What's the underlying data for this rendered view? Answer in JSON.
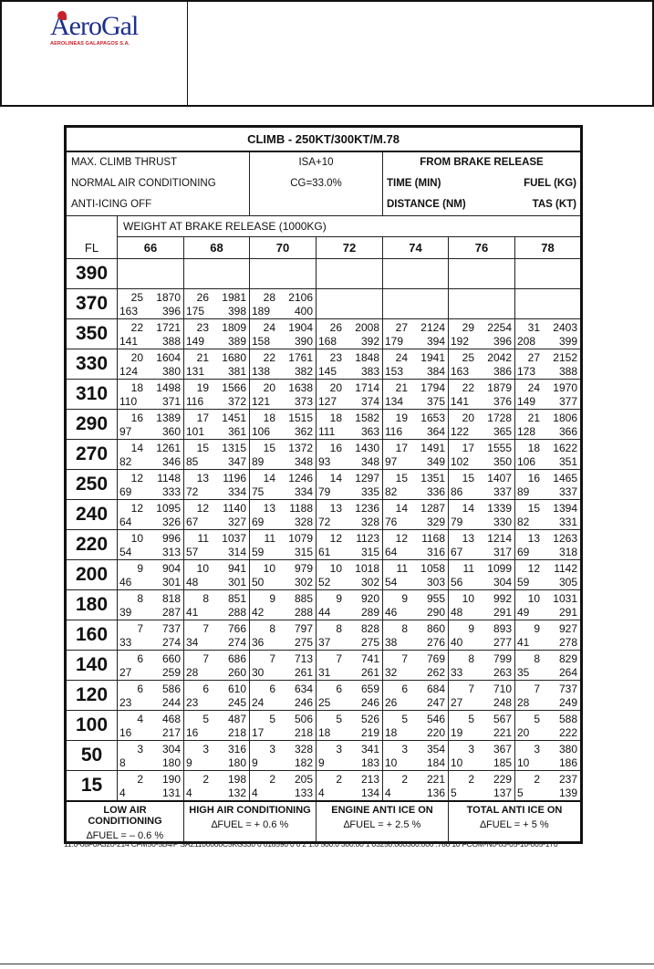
{
  "logo": {
    "name": "AeroGal",
    "subtitle": "AEROLINEAS GALAPAGOS S.A.",
    "colors": {
      "name": "#1d2f8f",
      "subtitle": "#c8202a"
    }
  },
  "table": {
    "title": "CLIMB - 250KT/300KT/M.78",
    "conditions": [
      "MAX. CLIMB THRUST",
      "NORMAL AIR CONDITIONING",
      "ANTI-ICING OFF"
    ],
    "isa": "ISA+10",
    "cg": "CG=33.0%",
    "from": "FROM BRAKE RELEASE",
    "legend": {
      "time": "TIME (MIN)",
      "fuel": "FUEL (KG)",
      "distance": "DISTANCE (NM)",
      "tas": "TAS (KT)"
    },
    "weight_label": "WEIGHT AT BRAKE RELEASE (1000KG)",
    "fl_label": "FL",
    "weights": [
      "66",
      "68",
      "70",
      "72",
      "74",
      "76",
      "78"
    ],
    "rows": [
      {
        "fl": "390",
        "cells": [
          null,
          null,
          null,
          null,
          null,
          null,
          null
        ]
      },
      {
        "fl": "370",
        "cells": [
          [
            25,
            1870,
            163,
            396
          ],
          [
            26,
            1981,
            175,
            398
          ],
          [
            28,
            2106,
            189,
            400
          ],
          null,
          null,
          null,
          null
        ]
      },
      {
        "fl": "350",
        "cells": [
          [
            22,
            1721,
            141,
            388
          ],
          [
            23,
            1809,
            149,
            389
          ],
          [
            24,
            1904,
            158,
            390
          ],
          [
            26,
            2008,
            168,
            392
          ],
          [
            27,
            2124,
            179,
            394
          ],
          [
            29,
            2254,
            192,
            396
          ],
          [
            31,
            2403,
            208,
            399
          ]
        ]
      },
      {
        "fl": "330",
        "cells": [
          [
            20,
            1604,
            124,
            380
          ],
          [
            21,
            1680,
            131,
            381
          ],
          [
            22,
            1761,
            138,
            382
          ],
          [
            23,
            1848,
            145,
            383
          ],
          [
            24,
            1941,
            153,
            384
          ],
          [
            25,
            2042,
            163,
            386
          ],
          [
            27,
            2152,
            173,
            388
          ]
        ]
      },
      {
        "fl": "310",
        "cells": [
          [
            18,
            1498,
            110,
            371
          ],
          [
            19,
            1566,
            116,
            372
          ],
          [
            20,
            1638,
            121,
            373
          ],
          [
            20,
            1714,
            127,
            374
          ],
          [
            21,
            1794,
            134,
            375
          ],
          [
            22,
            1879,
            141,
            376
          ],
          [
            24,
            1970,
            149,
            377
          ]
        ]
      },
      {
        "fl": "290",
        "cells": [
          [
            16,
            1389,
            97,
            360
          ],
          [
            17,
            1451,
            101,
            361
          ],
          [
            18,
            1515,
            106,
            362
          ],
          [
            18,
            1582,
            111,
            363
          ],
          [
            19,
            1653,
            116,
            364
          ],
          [
            20,
            1728,
            122,
            365
          ],
          [
            21,
            1806,
            128,
            366
          ]
        ]
      },
      {
        "fl": "270",
        "cells": [
          [
            14,
            1261,
            82,
            346
          ],
          [
            15,
            1315,
            85,
            347
          ],
          [
            15,
            1372,
            89,
            348
          ],
          [
            16,
            1430,
            93,
            348
          ],
          [
            17,
            1491,
            97,
            349
          ],
          [
            17,
            1555,
            102,
            350
          ],
          [
            18,
            1622,
            106,
            351
          ]
        ]
      },
      {
        "fl": "250",
        "cells": [
          [
            12,
            1148,
            69,
            333
          ],
          [
            13,
            1196,
            72,
            334
          ],
          [
            14,
            1246,
            75,
            334
          ],
          [
            14,
            1297,
            79,
            335
          ],
          [
            15,
            1351,
            82,
            336
          ],
          [
            15,
            1407,
            86,
            337
          ],
          [
            16,
            1465,
            89,
            337
          ]
        ]
      },
      {
        "fl": "240",
        "cells": [
          [
            12,
            1095,
            64,
            326
          ],
          [
            12,
            1140,
            67,
            327
          ],
          [
            13,
            1188,
            69,
            328
          ],
          [
            13,
            1236,
            72,
            328
          ],
          [
            14,
            1287,
            76,
            329
          ],
          [
            14,
            1339,
            79,
            330
          ],
          [
            15,
            1394,
            82,
            331
          ]
        ]
      },
      {
        "fl": "220",
        "cells": [
          [
            10,
            996,
            54,
            313
          ],
          [
            11,
            1037,
            57,
            314
          ],
          [
            11,
            1079,
            59,
            315
          ],
          [
            12,
            1123,
            61,
            315
          ],
          [
            12,
            1168,
            64,
            316
          ],
          [
            13,
            1214,
            67,
            317
          ],
          [
            13,
            1263,
            69,
            318
          ]
        ]
      },
      {
        "fl": "200",
        "cells": [
          [
            9,
            904,
            46,
            301
          ],
          [
            10,
            941,
            48,
            301
          ],
          [
            10,
            979,
            50,
            302
          ],
          [
            10,
            1018,
            52,
            302
          ],
          [
            11,
            1058,
            54,
            303
          ],
          [
            11,
            1099,
            56,
            304
          ],
          [
            12,
            1142,
            59,
            305
          ]
        ]
      },
      {
        "fl": "180",
        "cells": [
          [
            8,
            818,
            39,
            287
          ],
          [
            8,
            851,
            41,
            288
          ],
          [
            9,
            885,
            42,
            288
          ],
          [
            9,
            920,
            44,
            289
          ],
          [
            9,
            955,
            46,
            290
          ],
          [
            10,
            992,
            48,
            291
          ],
          [
            10,
            1031,
            49,
            291
          ]
        ]
      },
      {
        "fl": "160",
        "cells": [
          [
            7,
            737,
            33,
            274
          ],
          [
            7,
            766,
            34,
            274
          ],
          [
            8,
            797,
            36,
            275
          ],
          [
            8,
            828,
            37,
            275
          ],
          [
            8,
            860,
            38,
            276
          ],
          [
            9,
            893,
            40,
            277
          ],
          [
            9,
            927,
            41,
            278
          ]
        ]
      },
      {
        "fl": "140",
        "cells": [
          [
            6,
            660,
            27,
            259
          ],
          [
            7,
            686,
            28,
            260
          ],
          [
            7,
            713,
            30,
            261
          ],
          [
            7,
            741,
            31,
            261
          ],
          [
            7,
            769,
            32,
            262
          ],
          [
            8,
            799,
            33,
            263
          ],
          [
            8,
            829,
            35,
            264
          ]
        ]
      },
      {
        "fl": "120",
        "cells": [
          [
            6,
            586,
            23,
            244
          ],
          [
            6,
            610,
            23,
            245
          ],
          [
            6,
            634,
            24,
            246
          ],
          [
            6,
            659,
            25,
            246
          ],
          [
            6,
            684,
            26,
            247
          ],
          [
            7,
            710,
            27,
            248
          ],
          [
            7,
            737,
            28,
            249
          ]
        ]
      },
      {
        "fl": "100",
        "cells": [
          [
            4,
            468,
            16,
            217
          ],
          [
            5,
            487,
            16,
            218
          ],
          [
            5,
            506,
            17,
            218
          ],
          [
            5,
            526,
            18,
            219
          ],
          [
            5,
            546,
            18,
            220
          ],
          [
            5,
            567,
            19,
            221
          ],
          [
            5,
            588,
            20,
            222
          ]
        ]
      },
      {
        "fl": "50",
        "cells": [
          [
            3,
            304,
            8,
            180
          ],
          [
            3,
            316,
            9,
            180
          ],
          [
            3,
            328,
            9,
            182
          ],
          [
            3,
            341,
            9,
            183
          ],
          [
            3,
            354,
            10,
            184
          ],
          [
            3,
            367,
            10,
            185
          ],
          [
            3,
            380,
            10,
            186
          ]
        ]
      },
      {
        "fl": "15",
        "cells": [
          [
            2,
            190,
            4,
            131
          ],
          [
            2,
            198,
            4,
            132
          ],
          [
            2,
            205,
            4,
            133
          ],
          [
            2,
            213,
            4,
            134
          ],
          [
            2,
            221,
            4,
            136
          ],
          [
            2,
            229,
            5,
            137
          ],
          [
            2,
            237,
            5,
            139
          ]
        ]
      }
    ],
    "corrections": [
      {
        "label": "LOW AIR CONDITIONING",
        "value": "∆FUEL = – 0.6 %"
      },
      {
        "label": "HIGH AIR CONDITIONING",
        "value": "∆FUEL = + 0.6 %"
      },
      {
        "label": "ENGINE ANTI ICE ON",
        "value": "∆FUEL = + 2.5 %"
      },
      {
        "label": "TOTAL ANTI ICE ON",
        "value": "∆FUEL = + 5 %"
      }
    ],
    "code": "11.0-08F0A320-214 CFM56-5B4/P SA21100000C5KG330 0 018590 0 0 2 1.0 500.0 300.00 1 03250.000300.000 .780 10 FCOM-N0-03-05-10-005-170"
  }
}
